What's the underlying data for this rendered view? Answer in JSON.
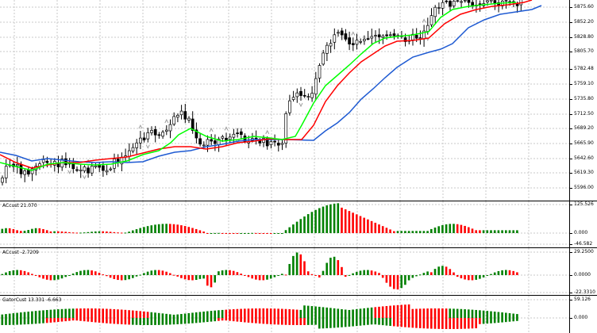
{
  "colors": {
    "grid": "#c8c8c8",
    "bull_body": "#ffffff",
    "bear_body": "#000000",
    "candle_line": "#000000",
    "lips": "#00ff00",
    "teeth": "#ff0000",
    "jaw": "#1e5ad2",
    "hist_up": "#008000",
    "hist_down": "#ff0000",
    "fractal": "#9e9e9e"
  },
  "price_axis": {
    "labels": [
      "5875.60",
      "5852.20",
      "5828.80",
      "5805.70",
      "5782.48",
      "5759.10",
      "5735.80",
      "5712.50",
      "5689.20",
      "5665.90",
      "5642.60",
      "5619.30",
      "5596.00"
    ]
  },
  "panes": {
    "ac": {
      "label": "ACcust 21.070",
      "axis_labels": [
        "125.526",
        "0.000",
        "-46.582"
      ]
    },
    "ac2": {
      "label": "ACcust -2.7209",
      "axis_labels": [
        "29.2500",
        "0.0000",
        "-22.3310"
      ]
    },
    "gator": {
      "label": "GatorCust 13.331 -6.663",
      "axis_labels": [
        "59.126",
        "0.000"
      ]
    }
  },
  "icons": {
    "fractal": "fractal-arrow-icon"
  }
}
